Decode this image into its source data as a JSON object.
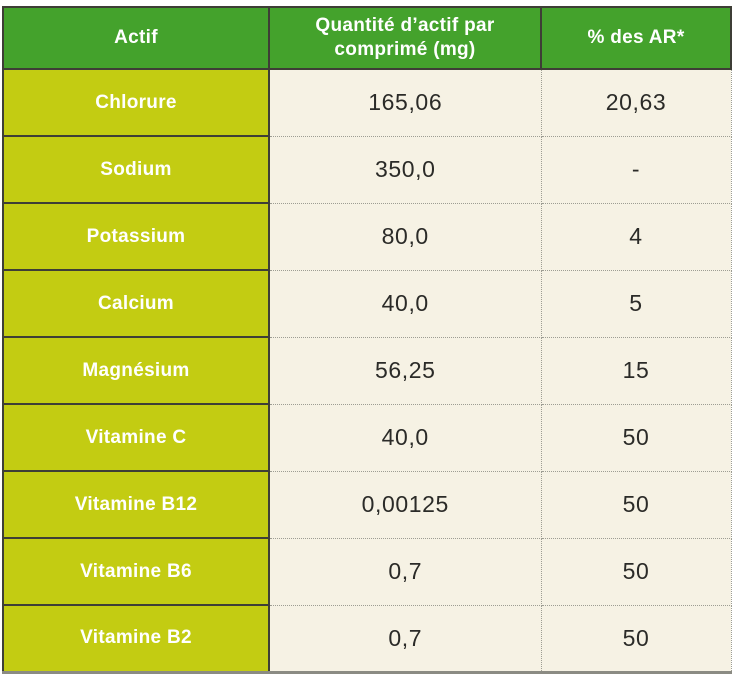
{
  "chart_data": {
    "type": "table",
    "columns": [
      "Actif",
      "Quantité d’actif par comprimé (mg)",
      "% des AR*"
    ],
    "rows": [
      {
        "actif": "Chlorure",
        "quantity_mg": "165,06",
        "percent_ar": "20,63"
      },
      {
        "actif": "Sodium",
        "quantity_mg": "350,0",
        "percent_ar": "-"
      },
      {
        "actif": "Potassium",
        "quantity_mg": "80,0",
        "percent_ar": "4"
      },
      {
        "actif": "Calcium",
        "quantity_mg": "40,0",
        "percent_ar": "5"
      },
      {
        "actif": "Magnésium",
        "quantity_mg": "56,25",
        "percent_ar": "15"
      },
      {
        "actif": "Vitamine C",
        "quantity_mg": "40,0",
        "percent_ar": "50"
      },
      {
        "actif": "Vitamine B12",
        "quantity_mg": "0,00125",
        "percent_ar": "50"
      },
      {
        "actif": "Vitamine B6",
        "quantity_mg": "0,7",
        "percent_ar": "50"
      },
      {
        "actif": "Vitamine B2",
        "quantity_mg": "0,7",
        "percent_ar": "50"
      }
    ],
    "layout_hints": {
      "header_position": "top",
      "first_column_highlighted": true,
      "grid": "solid dark borders on header and first column, dotted gray borders on value cells"
    }
  },
  "colors": {
    "header_bg": "#44a22c",
    "label_column_bg": "#c3cc12",
    "value_cell_bg": "#f6f2e4",
    "border_dark": "#3e3e36",
    "border_dotted": "#9d9d93",
    "bottom_edge": "#8b8b83",
    "text_light": "#ffffff",
    "text_dark": "#2b2b28"
  }
}
